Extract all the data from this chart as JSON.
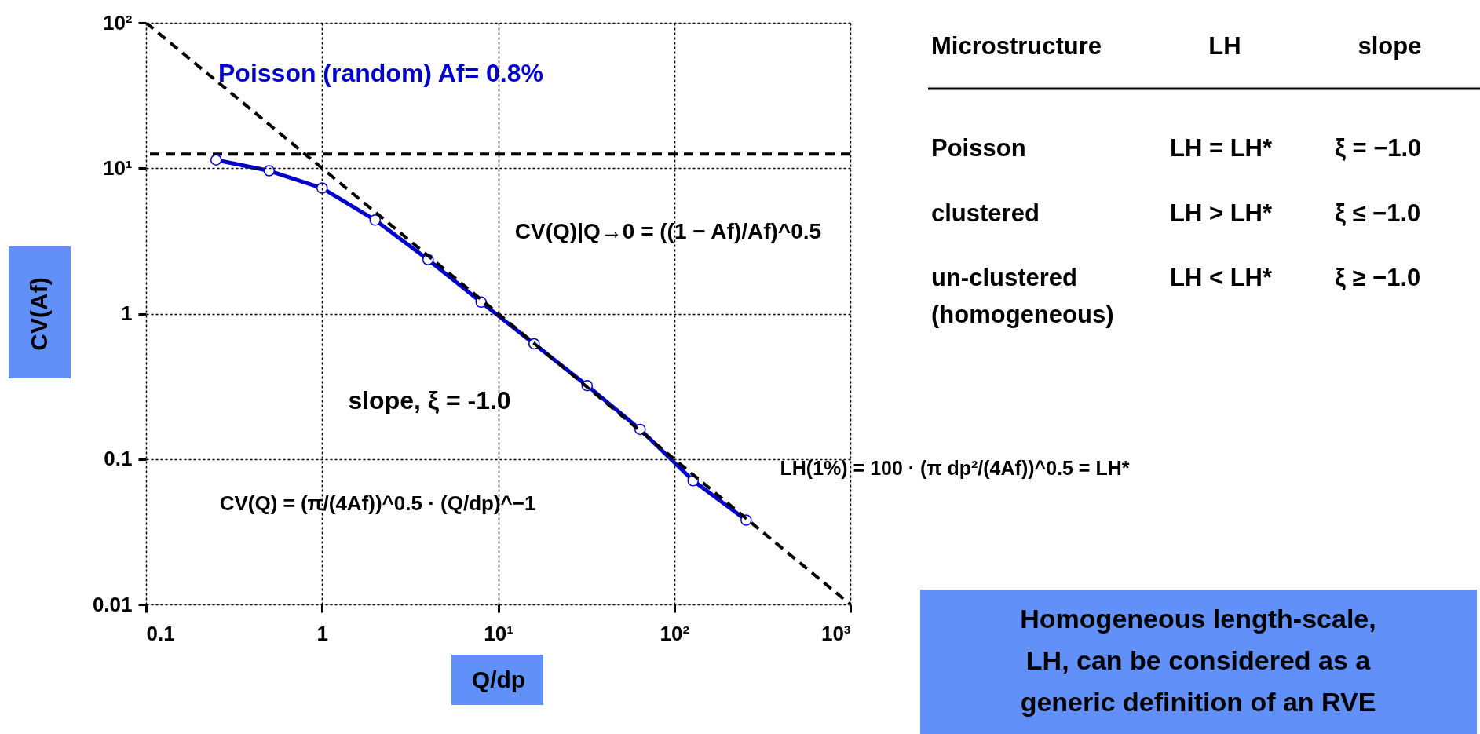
{
  "chart_data": {
    "type": "line",
    "xlabel": "Q/dp",
    "ylabel": "CV(Af)",
    "log": "xy",
    "grid": true,
    "marker": "circle",
    "xlim": [
      0.1,
      1000
    ],
    "ylim": [
      0.01,
      100
    ],
    "xticks": [
      0.1,
      1,
      {
        "value": 10,
        "label": "10¹"
      },
      {
        "value": 100,
        "label": "10²"
      },
      {
        "value": 1000,
        "label": "10³"
      }
    ],
    "yticks": [
      0.01,
      0.1,
      1,
      {
        "value": 10,
        "label": "10¹"
      },
      {
        "value": 100,
        "label": "10²"
      }
    ],
    "series": [
      {
        "color": "#0000cc",
        "line_style": "solid",
        "x": [
          0.25,
          0.5,
          1,
          2,
          4,
          8,
          16,
          32,
          64,
          128,
          256
        ],
        "values": [
          11.4,
          9.6,
          7.3,
          4.4,
          2.35,
          1.2,
          0.62,
          0.32,
          0.16,
          0.071,
          0.038
        ]
      },
      {
        "type": "line",
        "color": "#000000",
        "line_style": "dashed",
        "marker": "none",
        "x": [
          0.1,
          1000
        ],
        "values": [
          100,
          0.01
        ]
      }
    ],
    "ref_lines": [
      {
        "axis": "y",
        "value": 12.5,
        "color": "#000000",
        "line_style": "dashed"
      }
    ],
    "annotations": [
      "Poisson (random) Af= 0.8%",
      "CV(Q)|Q→0 = ((1 − Af)/Af)^0.5",
      "slope, ξ = -1.0",
      "CV(Q) = (π/(4Af))^0.5 · (Q/dp)^−1",
      "LH(1%) = 100 · (π dp²/(4Af))^0.5 = LH*",
      "Microstructure",
      "LH",
      "slope",
      "Poisson",
      "LH = LH*",
      "ξ = −1.0",
      "clustered",
      "LH > LH*",
      "ξ ≤ −1.0",
      "un-clustered",
      "LH < LH*",
      "ξ ≥ −1.0",
      "(homogeneous)",
      "Homogeneous length-scale,",
      "LH, can be considered as a",
      "generic definition of an RVE"
    ]
  }
}
